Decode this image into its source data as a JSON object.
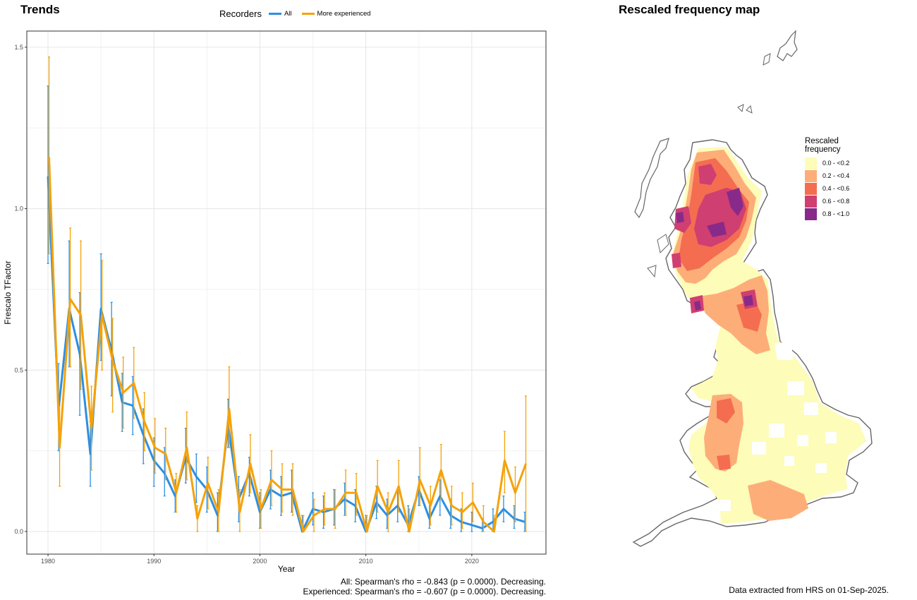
{
  "trends": {
    "title": "Trends",
    "footnote_lines": [
      "All: Spearman's rho = -0.843 (p = 0.0000). Decreasing.",
      "Experienced: Spearman's rho = -0.607 (p = 0.0000). Decreasing."
    ]
  },
  "chart_data": {
    "type": "line",
    "xlabel": "Year",
    "ylabel": "Frescalo TFactor",
    "xlim": [
      1978,
      2027
    ],
    "ylim": [
      -0.07,
      1.55
    ],
    "x_ticks": [
      1980,
      1990,
      2000,
      2010,
      2020
    ],
    "y_ticks": [
      "0.0",
      "0.5",
      "1.0",
      "1.5"
    ],
    "grid": true,
    "legend": {
      "title": "Recorders",
      "placement": "top"
    },
    "x": [
      1980,
      1981,
      1982,
      1983,
      1984,
      1985,
      1986,
      1987,
      1988,
      1989,
      1990,
      1991,
      1992,
      1993,
      1994,
      1995,
      1996,
      1997,
      1998,
      1999,
      2000,
      2001,
      2002,
      2003,
      2004,
      2005,
      2006,
      2007,
      2008,
      2009,
      2010,
      2011,
      2012,
      2013,
      2014,
      2015,
      2016,
      2017,
      2018,
      2019,
      2020,
      2021,
      2022,
      2023,
      2024,
      2025
    ],
    "series": [
      {
        "name": "All",
        "color": "#2e8fe0",
        "values": [
          1.1,
          0.38,
          0.69,
          0.55,
          0.24,
          0.69,
          0.56,
          0.4,
          0.39,
          0.3,
          0.22,
          0.18,
          0.11,
          0.23,
          0.17,
          0.13,
          0.05,
          0.33,
          0.1,
          0.18,
          0.06,
          0.13,
          0.11,
          0.12,
          0.0,
          0.07,
          0.06,
          0.07,
          0.1,
          0.08,
          0.0,
          0.09,
          0.05,
          0.08,
          0.02,
          0.13,
          0.04,
          0.11,
          0.05,
          0.03,
          0.02,
          0.01,
          0.03,
          0.07,
          0.04,
          0.03
        ],
        "err_low": [
          0.83,
          0.25,
          0.51,
          0.36,
          0.14,
          0.53,
          0.42,
          0.31,
          0.3,
          0.21,
          0.14,
          0.11,
          0.06,
          0.15,
          0.09,
          0.06,
          0.0,
          0.26,
          0.03,
          0.11,
          0.01,
          0.07,
          0.05,
          0.06,
          0.0,
          0.02,
          0.01,
          0.02,
          0.05,
          0.03,
          0.0,
          0.04,
          0.01,
          0.03,
          0.0,
          0.08,
          0.01,
          0.05,
          0.01,
          0.0,
          0.0,
          0.0,
          0.0,
          0.03,
          0.01,
          0.0
        ],
        "err_high": [
          1.38,
          0.52,
          0.9,
          0.74,
          0.34,
          0.86,
          0.71,
          0.49,
          0.48,
          0.38,
          0.29,
          0.26,
          0.16,
          0.32,
          0.24,
          0.2,
          0.12,
          0.41,
          0.17,
          0.23,
          0.12,
          0.19,
          0.17,
          0.19,
          0.05,
          0.12,
          0.11,
          0.13,
          0.15,
          0.13,
          0.05,
          0.14,
          0.1,
          0.13,
          0.08,
          0.17,
          0.09,
          0.16,
          0.1,
          0.07,
          0.06,
          0.04,
          0.07,
          0.11,
          0.08,
          0.06
        ]
      },
      {
        "name": "More experienced",
        "color": "#f5a20a",
        "values": [
          1.16,
          0.26,
          0.72,
          0.67,
          0.32,
          0.67,
          0.53,
          0.43,
          0.46,
          0.34,
          0.26,
          0.24,
          0.12,
          0.26,
          0.04,
          0.15,
          0.06,
          0.38,
          0.06,
          0.21,
          0.07,
          0.16,
          0.13,
          0.13,
          0.0,
          0.05,
          0.07,
          0.07,
          0.12,
          0.12,
          0.0,
          0.14,
          0.06,
          0.14,
          0.0,
          0.16,
          0.08,
          0.19,
          0.08,
          0.06,
          0.09,
          0.03,
          0.0,
          0.22,
          0.12,
          0.21
        ],
        "err_low": [
          0.86,
          0.14,
          0.51,
          0.44,
          0.19,
          0.5,
          0.37,
          0.32,
          0.35,
          0.25,
          0.18,
          0.16,
          0.06,
          0.16,
          0.0,
          0.07,
          0.0,
          0.26,
          0.0,
          0.12,
          0.01,
          0.08,
          0.06,
          0.05,
          0.0,
          0.0,
          0.02,
          0.01,
          0.05,
          0.05,
          0.0,
          0.06,
          0.0,
          0.06,
          0.0,
          0.08,
          0.02,
          0.1,
          0.02,
          0.01,
          0.03,
          0.0,
          0.0,
          0.12,
          0.03,
          0.0
        ],
        "err_high": [
          1.47,
          0.39,
          0.94,
          0.9,
          0.45,
          0.84,
          0.66,
          0.54,
          0.57,
          0.43,
          0.35,
          0.32,
          0.18,
          0.37,
          0.08,
          0.23,
          0.13,
          0.51,
          0.13,
          0.3,
          0.13,
          0.25,
          0.21,
          0.21,
          0.05,
          0.1,
          0.12,
          0.13,
          0.19,
          0.18,
          0.05,
          0.22,
          0.12,
          0.22,
          0.07,
          0.26,
          0.14,
          0.27,
          0.14,
          0.12,
          0.15,
          0.08,
          0.05,
          0.31,
          0.2,
          0.42
        ]
      }
    ]
  },
  "map": {
    "title": "Rescaled frequency map",
    "legend_title": "Rescaled frequency",
    "bins": [
      {
        "label": "0.0 - <0.2",
        "color": "#fdfcb9"
      },
      {
        "label": "0.2 - <0.4",
        "color": "#fdae78"
      },
      {
        "label": "0.4 - <0.6",
        "color": "#f46d50"
      },
      {
        "label": "0.6 - <0.8",
        "color": "#cf3f71"
      },
      {
        "label": "0.8 - <1.0",
        "color": "#882a8a"
      }
    ],
    "footnote": "Data extracted from HRS on 01-Sep-2025."
  }
}
